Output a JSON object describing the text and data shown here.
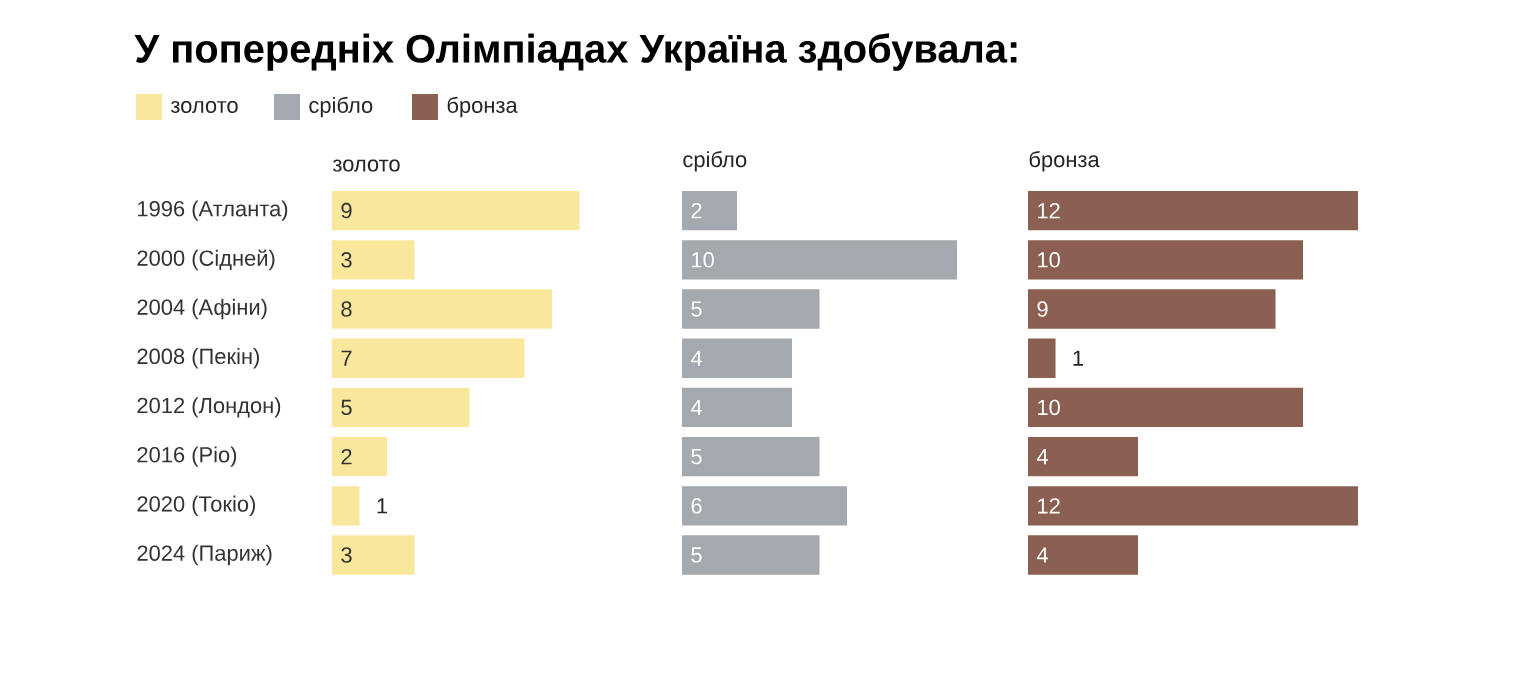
{
  "chart_data": [
    {
      "type": "bar",
      "orientation": "horizontal",
      "title": "У попередніх Олімпіадах Україна здобувала:",
      "categories": [
        "1996 (Атланта)",
        "2000 (Сідней)",
        "2004 (Афіни)",
        "2008 (Пекін)",
        "2012 (Лондон)",
        "2016 (Ріо)",
        "2020 (Токіо)",
        "2024 (Париж)"
      ],
      "series": [
        {
          "name": "золото",
          "color": "#f9e79c",
          "values": [
            9,
            3,
            8,
            7,
            5,
            2,
            1,
            3
          ]
        }
      ],
      "data_labels": true,
      "legend": "top left",
      "tick_labels": "y"
    },
    {
      "type": "bar",
      "orientation": "horizontal",
      "categories": [
        null,
        null,
        null,
        null,
        null,
        null,
        null,
        null
      ],
      "series": [
        {
          "name": "срібло",
          "color": "#a3a9ae",
          "values": [
            2,
            10,
            5,
            4,
            4,
            5,
            6,
            5
          ]
        }
      ],
      "data_labels": true,
      "legend": "top left"
    },
    {
      "type": "bar",
      "orientation": "horizontal",
      "categories": [
        null,
        null,
        null,
        null,
        null,
        null,
        null,
        null
      ],
      "series": [
        {
          "name": "бронза",
          "color": "#8b5f52",
          "values": [
            12,
            10,
            9,
            1,
            10,
            4,
            12,
            4
          ]
        }
      ],
      "data_labels": true,
      "legend": "top left"
    }
  ]
}
